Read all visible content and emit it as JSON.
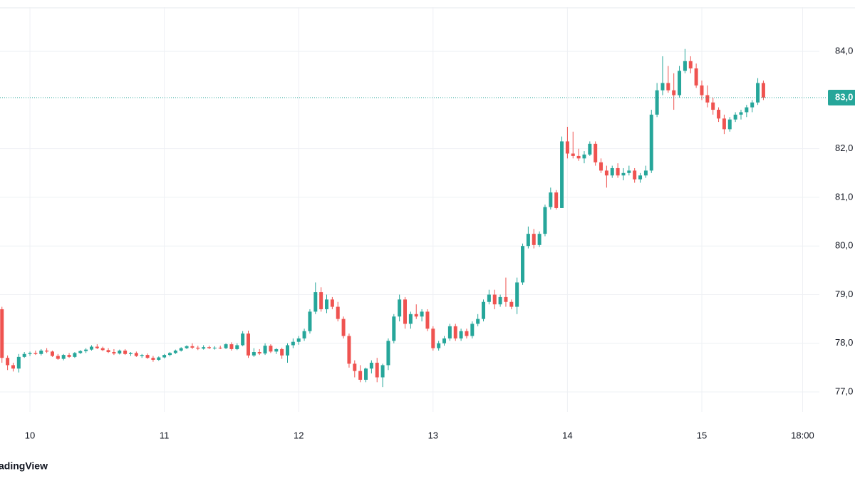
{
  "chart_data": {
    "type": "candlestick",
    "watermark": "adingView",
    "up_color": "#26a69a",
    "down_color": "#ef5350",
    "grid": true,
    "xlim": [
      -5.35,
      141
    ],
    "ylim": [
      76590,
      84910
    ],
    "xticks": [
      {
        "value": 0,
        "label": "10"
      },
      {
        "value": 24,
        "label": "11"
      },
      {
        "value": 48,
        "label": "12"
      },
      {
        "value": 72,
        "label": "13"
      },
      {
        "value": 96,
        "label": "14"
      },
      {
        "value": 120,
        "label": "15"
      },
      {
        "value": 138,
        "label": "18:00"
      }
    ],
    "yticks": [
      {
        "value": 77000,
        "label": "77,0"
      },
      {
        "value": 78000,
        "label": "78,0"
      },
      {
        "value": 79000,
        "label": "79,0"
      },
      {
        "value": 80000,
        "label": "80,0"
      },
      {
        "value": 81000,
        "label": "81,0"
      },
      {
        "value": 82000,
        "label": "82,0"
      },
      {
        "value": 84000,
        "label": "84,0"
      }
    ],
    "last_price": {
      "value": 83050,
      "label": "83,0"
    },
    "x": [
      -5,
      -4,
      -3,
      -2,
      -1,
      0,
      1,
      2,
      3,
      4,
      5,
      6,
      7,
      8,
      9,
      10,
      11,
      12,
      13,
      14,
      15,
      16,
      17,
      18,
      19,
      20,
      21,
      22,
      23,
      24,
      25,
      26,
      27,
      28,
      29,
      30,
      31,
      32,
      33,
      34,
      35,
      36,
      37,
      38,
      39,
      40,
      41,
      42,
      43,
      44,
      45,
      46,
      47,
      48,
      49,
      50,
      51,
      52,
      53,
      54,
      55,
      56,
      57,
      58,
      59,
      60,
      61,
      62,
      63,
      64,
      65,
      66,
      67,
      68,
      69,
      70,
      71,
      72,
      73,
      74,
      75,
      76,
      77,
      78,
      79,
      80,
      81,
      82,
      83,
      84,
      85,
      86,
      87,
      88,
      89,
      90,
      91,
      92,
      93,
      94,
      95,
      96,
      97,
      98,
      99,
      100,
      101,
      102,
      103,
      104,
      105,
      106,
      107,
      108,
      109,
      110,
      111,
      112,
      113,
      114,
      115,
      116,
      117,
      118,
      119,
      120,
      121,
      122,
      123,
      124,
      125,
      126,
      127,
      128,
      129,
      130,
      131
    ],
    "open": [
      78700,
      77700,
      77550,
      77480,
      77720,
      77780,
      77800,
      77780,
      77850,
      77830,
      77740,
      77680,
      77760,
      77720,
      77800,
      77840,
      77870,
      77930,
      77900,
      77860,
      77820,
      77790,
      77850,
      77780,
      77800,
      77740,
      77760,
      77700,
      77660,
      77710,
      77760,
      77800,
      77850,
      77900,
      77940,
      77910,
      77890,
      77920,
      77900,
      77910,
      77900,
      77980,
      77880,
      77960,
      78200,
      77750,
      77820,
      77790,
      77950,
      77830,
      77880,
      77750,
      77960,
      78030,
      78100,
      78250,
      78650,
      79050,
      78700,
      78900,
      78750,
      78500,
      78150,
      77580,
      77430,
      77250,
      77480,
      77600,
      77300,
      77550,
      78050,
      78550,
      78900,
      78400,
      78600,
      78550,
      78650,
      78300,
      77900,
      78000,
      78100,
      78350,
      78100,
      78250,
      78150,
      78400,
      78500,
      78850,
      79000,
      78800,
      78950,
      78850,
      78750,
      79250,
      80000,
      80250,
      80020,
      80250,
      80800,
      81100,
      80780,
      82150,
      81900,
      81850,
      81800,
      81880,
      82100,
      81720,
      81550,
      81450,
      81600,
      81450,
      81500,
      81550,
      81370,
      81450,
      81550,
      82700,
      83200,
      83350,
      83200,
      83100,
      83600,
      83800,
      83650,
      83300,
      83100,
      82950,
      82800,
      82620,
      82400,
      82600,
      82700,
      82750,
      82850,
      82950,
      83350
    ],
    "high": [
      78750,
      77750,
      77600,
      77780,
      77820,
      77830,
      77850,
      77880,
      77900,
      77850,
      77780,
      77780,
      77800,
      77820,
      77860,
      77900,
      77960,
      77980,
      77930,
      77900,
      77880,
      77870,
      77880,
      77820,
      77830,
      77780,
      77790,
      77740,
      77730,
      77780,
      77820,
      77870,
      77920,
      77960,
      78000,
      77950,
      77960,
      77950,
      77940,
      77950,
      78000,
      78020,
      78000,
      78250,
      78260,
      77900,
      77880,
      78000,
      77980,
      77900,
      77910,
      78000,
      78100,
      78150,
      78300,
      78700,
      79250,
      79150,
      79000,
      78950,
      78850,
      78550,
      78200,
      77650,
      77550,
      77500,
      77650,
      77700,
      77580,
      78100,
      78600,
      79000,
      78950,
      78650,
      78800,
      78700,
      78700,
      78350,
      78050,
      78150,
      78400,
      78400,
      78300,
      78300,
      78450,
      78600,
      78900,
      79100,
      79100,
      79000,
      79350,
      78900,
      79350,
      80050,
      80400,
      80350,
      80300,
      80850,
      81200,
      81150,
      82250,
      82450,
      82350,
      82000,
      81950,
      82150,
      82150,
      81800,
      81650,
      81650,
      81700,
      81600,
      81650,
      81600,
      81500,
      81650,
      82800,
      83350,
      83900,
      83700,
      83550,
      83700,
      84050,
      83900,
      83750,
      83400,
      83300,
      83050,
      82850,
      82700,
      82650,
      82750,
      82800,
      82900,
      83000,
      83450,
      83400
    ],
    "low": [
      77600,
      77450,
      77420,
      77400,
      77700,
      77740,
      77760,
      77750,
      77800,
      77720,
      77660,
      77650,
      77700,
      77700,
      77780,
      77800,
      77850,
      77880,
      77840,
      77800,
      77760,
      77770,
      77760,
      77740,
      77720,
      77700,
      77680,
      77620,
      77640,
      77690,
      77730,
      77780,
      77830,
      77880,
      77880,
      77860,
      77870,
      77880,
      77870,
      77880,
      77880,
      77850,
      77860,
      77940,
      77700,
      77720,
      77760,
      77760,
      77800,
      77780,
      77680,
      77600,
      77900,
      77970,
      78050,
      78200,
      78600,
      78650,
      78620,
      78700,
      78450,
      78100,
      77500,
      77300,
      77200,
      77200,
      77380,
      77200,
      77100,
      77450,
      78000,
      78450,
      78300,
      78300,
      78500,
      78450,
      78250,
      77850,
      77850,
      77950,
      78050,
      78050,
      78050,
      78100,
      78100,
      78350,
      78450,
      78800,
      78700,
      78750,
      78750,
      78700,
      78600,
      79200,
      79950,
      79950,
      79980,
      80200,
      80750,
      80750,
      80780,
      81800,
      81800,
      81750,
      81700,
      81850,
      81650,
      81500,
      81200,
      81400,
      81400,
      81350,
      81450,
      81300,
      81300,
      81400,
      81500,
      82650,
      83100,
      83150,
      82800,
      83050,
      83550,
      83550,
      83250,
      83000,
      82850,
      82700,
      82550,
      82300,
      82350,
      82550,
      82600,
      82650,
      82750,
      82900,
      83000
    ],
    "close": [
      77700,
      77550,
      77480,
      77720,
      77780,
      77800,
      77780,
      77850,
      77830,
      77740,
      77680,
      77760,
      77720,
      77800,
      77840,
      77870,
      77930,
      77900,
      77860,
      77820,
      77790,
      77850,
      77780,
      77800,
      77740,
      77760,
      77700,
      77660,
      77710,
      77760,
      77800,
      77850,
      77900,
      77940,
      77910,
      77890,
      77920,
      77900,
      77910,
      77900,
      77980,
      77880,
      77960,
      78200,
      77750,
      77820,
      77790,
      77950,
      77830,
      77880,
      77750,
      77960,
      78030,
      78100,
      78250,
      78650,
      79050,
      78700,
      78900,
      78750,
      78500,
      78150,
      77580,
      77430,
      77250,
      77480,
      77600,
      77300,
      77550,
      78050,
      78550,
      78900,
      78400,
      78600,
      78550,
      78650,
      78300,
      77900,
      78000,
      78100,
      78350,
      78100,
      78250,
      78150,
      78400,
      78500,
      78850,
      79000,
      78800,
      78950,
      78850,
      78750,
      79250,
      80000,
      80250,
      80020,
      80250,
      80800,
      81100,
      80780,
      82150,
      81900,
      81850,
      81800,
      81880,
      82100,
      81720,
      81550,
      81450,
      81600,
      81450,
      81500,
      81550,
      81370,
      81450,
      81550,
      82700,
      83200,
      83350,
      83200,
      83100,
      83600,
      83800,
      83650,
      83300,
      83100,
      82950,
      82800,
      82620,
      82400,
      82600,
      82700,
      82750,
      82850,
      82950,
      83350,
      83050
    ]
  }
}
